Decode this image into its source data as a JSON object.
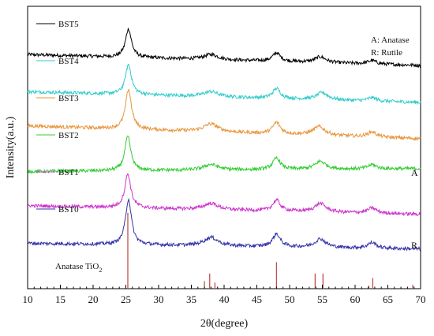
{
  "chart_data": {
    "type": "line",
    "xlabel": "2θ(degree)",
    "ylabel": "Intensity(a.u.)",
    "xlim": [
      10,
      70
    ],
    "xticks": [
      10,
      15,
      20,
      25,
      30,
      35,
      40,
      45,
      50,
      55,
      60,
      65,
      70
    ],
    "y_ticks_shown": false,
    "legend_placement": "left, beside each trace",
    "phase_key": [
      "A: Anatase",
      "R: Rutile"
    ],
    "side_labels": {
      "top": "A",
      "bottom": "R"
    },
    "reference": {
      "name": "Anatase TiO",
      "subscript": "2",
      "color": "#c0504d",
      "peaks": [
        {
          "x": 25.3,
          "h": 1.0
        },
        {
          "x": 37.0,
          "h": 0.1
        },
        {
          "x": 37.8,
          "h": 0.2
        },
        {
          "x": 38.6,
          "h": 0.08
        },
        {
          "x": 48.0,
          "h": 0.35
        },
        {
          "x": 53.9,
          "h": 0.2
        },
        {
          "x": 55.1,
          "h": 0.2
        },
        {
          "x": 62.1,
          "h": 0.04
        },
        {
          "x": 62.7,
          "h": 0.14
        },
        {
          "x": 68.8,
          "h": 0.05
        }
      ]
    },
    "series": [
      {
        "name": "BST5",
        "color": "#000000",
        "offset": 5,
        "baseline": [
          [
            10,
            0.3
          ],
          [
            70,
            -0.08
          ]
        ],
        "peaks": [
          [
            25.4,
            1.0,
            0.55
          ],
          [
            38.0,
            0.18,
            1.3
          ],
          [
            48.0,
            0.3,
            0.7
          ],
          [
            54.7,
            0.2,
            1.0
          ],
          [
            62.6,
            0.12,
            0.8
          ]
        ]
      },
      {
        "name": "BST4",
        "color": "#33cccc",
        "offset": 4,
        "baseline": [
          [
            10,
            0.3
          ],
          [
            70,
            -0.08
          ]
        ],
        "peaks": [
          [
            25.4,
            1.05,
            0.55
          ],
          [
            38.0,
            0.18,
            1.3
          ],
          [
            48.0,
            0.35,
            0.7
          ],
          [
            55.0,
            0.25,
            1.0
          ],
          [
            62.6,
            0.12,
            0.8
          ]
        ]
      },
      {
        "name": "BST3",
        "color": "#e8963c",
        "offset": 3,
        "baseline": [
          [
            10,
            0.4
          ],
          [
            70,
            -0.05
          ]
        ],
        "peaks": [
          [
            25.4,
            1.4,
            0.55
          ],
          [
            38.0,
            0.28,
            1.3
          ],
          [
            48.0,
            0.4,
            0.7
          ],
          [
            54.5,
            0.3,
            1.1
          ],
          [
            62.6,
            0.18,
            0.8
          ]
        ]
      },
      {
        "name": "BST2",
        "color": "#33cc33",
        "offset": 2,
        "baseline": [
          [
            10,
            0.1
          ],
          [
            70,
            0.2
          ]
        ],
        "peaks": [
          [
            25.3,
            1.2,
            0.55
          ],
          [
            38.0,
            0.2,
            1.3
          ],
          [
            48.0,
            0.4,
            0.7
          ],
          [
            54.7,
            0.28,
            1.0
          ],
          [
            62.6,
            0.15,
            0.8
          ]
        ]
      },
      {
        "name": "BST1",
        "color": "#cc33cc",
        "offset": 1,
        "baseline": [
          [
            10,
            0.2
          ],
          [
            70,
            -0.1
          ]
        ],
        "peaks": [
          [
            25.3,
            1.2,
            0.55
          ],
          [
            38.0,
            0.22,
            1.3
          ],
          [
            48.0,
            0.38,
            0.7
          ],
          [
            54.7,
            0.3,
            1.0
          ],
          [
            62.6,
            0.18,
            0.8
          ]
        ]
      },
      {
        "name": "BST0",
        "color": "#3333aa",
        "offset": 0,
        "baseline": [
          [
            10,
            0.18
          ],
          [
            70,
            -0.02
          ]
        ],
        "peaks": [
          [
            25.4,
            1.6,
            0.55
          ],
          [
            38.0,
            0.3,
            1.3
          ],
          [
            48.0,
            0.45,
            0.7
          ],
          [
            54.7,
            0.3,
            1.0
          ],
          [
            62.6,
            0.2,
            0.8
          ]
        ]
      }
    ]
  }
}
